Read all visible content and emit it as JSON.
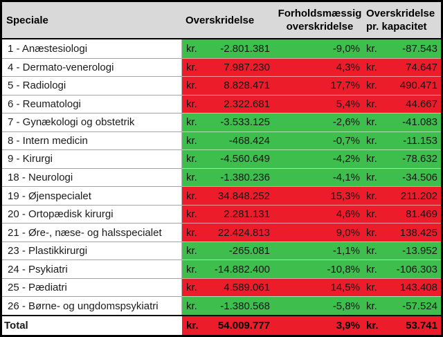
{
  "table": {
    "currency_label": "kr.",
    "headers": {
      "speciale": "Speciale",
      "overskridelse": "Overskridelse",
      "forholdsmaessig": "Forholdsmæssig\noverskridelse",
      "pr_kapacitet": "Overskridelse\npr. kapacitet"
    },
    "rows": [
      {
        "name": "1 - Anæstesiologi",
        "overskridelse": "-2.801.381",
        "pct": "-9,0%",
        "per_capacity": "-87.543",
        "status": "green"
      },
      {
        "name": "4 - Dermato-venerologi",
        "overskridelse": "7.987.230",
        "pct": "4,3%",
        "per_capacity": "74.647",
        "status": "red"
      },
      {
        "name": "5 - Radiologi",
        "overskridelse": "8.828.471",
        "pct": "17,7%",
        "per_capacity": "490.471",
        "status": "red"
      },
      {
        "name": "6 - Reumatologi",
        "overskridelse": "2.322.681",
        "pct": "5,4%",
        "per_capacity": "44.667",
        "status": "red"
      },
      {
        "name": "7 - Gynækologi og obstetrik",
        "overskridelse": "-3.533.125",
        "pct": "-2,6%",
        "per_capacity": "-41.083",
        "status": "green"
      },
      {
        "name": "8 - Intern medicin",
        "overskridelse": "-468.424",
        "pct": "-0,7%",
        "per_capacity": "-11.153",
        "status": "green"
      },
      {
        "name": "9 - Kirurgi",
        "overskridelse": "-4.560.649",
        "pct": "-4,2%",
        "per_capacity": "-78.632",
        "status": "green"
      },
      {
        "name": "18 - Neurologi",
        "overskridelse": "-1.380.236",
        "pct": "-4,1%",
        "per_capacity": "-34.506",
        "status": "green"
      },
      {
        "name": "19 - Øjenspecialet",
        "overskridelse": "34.848.252",
        "pct": "15,3%",
        "per_capacity": "211.202",
        "status": "red"
      },
      {
        "name": "20 - Ortopædisk kirurgi",
        "overskridelse": "2.281.131",
        "pct": "4,6%",
        "per_capacity": "81.469",
        "status": "red"
      },
      {
        "name": "21 - Øre-, næse- og halsspecialet",
        "overskridelse": "22.424.813",
        "pct": "9,0%",
        "per_capacity": "138.425",
        "status": "red"
      },
      {
        "name": "23 - Plastikkirurgi",
        "overskridelse": "-265.081",
        "pct": "-1,1%",
        "per_capacity": "-13.952",
        "status": "green"
      },
      {
        "name": "24 - Psykiatri",
        "overskridelse": "-14.882.400",
        "pct": "-10,8%",
        "per_capacity": "-106.303",
        "status": "green"
      },
      {
        "name": "25 - Pædiatri",
        "overskridelse": "4.589.061",
        "pct": "14,5%",
        "per_capacity": "143.408",
        "status": "red"
      },
      {
        "name": "26 - Børne- og ungdomspsykiatri",
        "overskridelse": "-1.380.568",
        "pct": "-5,8%",
        "per_capacity": "-57.524",
        "status": "green"
      }
    ],
    "total": {
      "name": "Total",
      "overskridelse": "54.009.777",
      "pct": "3,9%",
      "per_capacity": "53.741",
      "status": "red"
    }
  },
  "colors": {
    "under_budget_green": "#3EBE4D",
    "over_budget_red": "#ED1C2B",
    "header_bg": "#D9D9D9"
  }
}
